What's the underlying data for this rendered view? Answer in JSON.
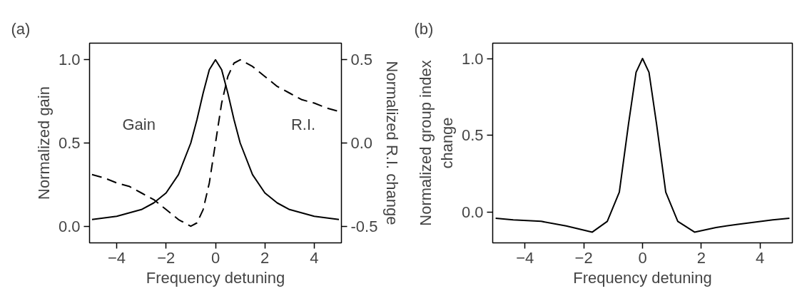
{
  "chart_data": [
    {
      "type": "line",
      "title": "(a)",
      "xlabel": "Frequency detuning",
      "ylabel": "Normalized gain",
      "y2label": "Normalized R.I. change",
      "xlim": [
        -5.1,
        5.1
      ],
      "ylim": [
        -0.1,
        1.1
      ],
      "y2lim": [
        -0.6,
        0.6
      ],
      "xticks": [
        -4,
        -2,
        0,
        2,
        4
      ],
      "yticks": [
        {
          "value": 0,
          "label": "0.0"
        },
        {
          "value": 0.5,
          "label": "0.5"
        },
        {
          "value": 1,
          "label": "1.0"
        }
      ],
      "y2ticks": [
        {
          "value": -0.5,
          "label": "-0.5"
        },
        {
          "value": 0,
          "label": "0.0"
        },
        {
          "value": 0.5,
          "label": "0.5"
        }
      ],
      "series": [
        {
          "name": "Gain",
          "color": "#000000",
          "line_style": "solid",
          "x": [
            -5,
            -4.5,
            -4,
            -3.5,
            -3,
            -2.5,
            -2,
            -1.5,
            -1,
            -0.75,
            -0.5,
            -0.25,
            0,
            0.25,
            0.5,
            0.75,
            1,
            1.5,
            2,
            2.5,
            3,
            3.5,
            4,
            4.5,
            5
          ],
          "values": [
            0.04,
            0.05,
            0.06,
            0.08,
            0.1,
            0.14,
            0.2,
            0.31,
            0.5,
            0.64,
            0.8,
            0.94,
            1.0,
            0.94,
            0.8,
            0.64,
            0.5,
            0.31,
            0.2,
            0.14,
            0.1,
            0.08,
            0.06,
            0.05,
            0.04
          ]
        },
        {
          "name": "R.I.",
          "color": "#000000",
          "line_style": "dashed",
          "axis": "y2",
          "x": [
            -5,
            -4.5,
            -4,
            -3.5,
            -3,
            -2.5,
            -2,
            -1.5,
            -1,
            -0.75,
            -0.5,
            -0.25,
            0,
            0.25,
            0.5,
            0.75,
            1,
            1.5,
            2,
            2.5,
            3,
            3.5,
            4,
            4.5,
            5
          ],
          "values": [
            -0.19,
            -0.21,
            -0.24,
            -0.26,
            -0.3,
            -0.34,
            -0.4,
            -0.46,
            -0.5,
            -0.48,
            -0.4,
            -0.24,
            0,
            0.24,
            0.4,
            0.48,
            0.5,
            0.46,
            0.4,
            0.34,
            0.3,
            0.26,
            0.24,
            0.21,
            0.19
          ]
        }
      ]
    },
    {
      "type": "line",
      "title": "(b)",
      "xlabel": "Frequency detuning",
      "ylabel": "Normalized group index change",
      "xlim": [
        -5.1,
        5.1
      ],
      "ylim": [
        -0.2,
        1.1
      ],
      "xticks": [
        -4,
        -2,
        0,
        2,
        4
      ],
      "yticks": [
        {
          "value": 0,
          "label": "0.0"
        },
        {
          "value": 0.5,
          "label": "0.5"
        },
        {
          "value": 1,
          "label": "1.0"
        }
      ],
      "series": [
        {
          "color": "#000000",
          "line_style": "solid",
          "x": [
            -5,
            -4.4,
            -3.45,
            -2.6,
            -1.71,
            -1.2,
            -0.79,
            -0.48,
            -0.22,
            0,
            0.22,
            0.48,
            0.79,
            1.2,
            1.77,
            2.5,
            3.2,
            4.43,
            5
          ],
          "values": [
            -0.04,
            -0.05,
            -0.06,
            -0.09,
            -0.13,
            -0.06,
            0.13,
            0.57,
            0.91,
            1.0,
            0.91,
            0.57,
            0.13,
            -0.06,
            -0.13,
            -0.1,
            -0.08,
            -0.05,
            -0.04
          ]
        }
      ]
    }
  ]
}
